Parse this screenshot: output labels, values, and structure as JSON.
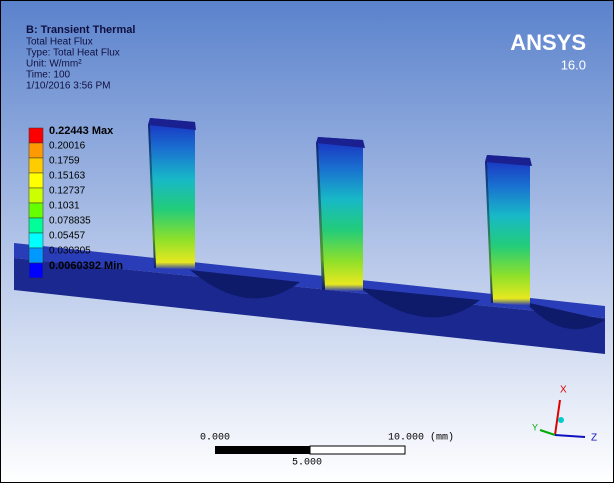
{
  "header": {
    "title": "B: Transient Thermal",
    "lines": [
      "Total Heat Flux",
      "Type: Total Heat Flux",
      "Unit: W/mm²",
      "Time: 100",
      "1/10/2016 3:56 PM"
    ]
  },
  "logo": {
    "name": "ANSYS",
    "version": "16.0"
  },
  "legend": {
    "labels": [
      "0.22443 Max",
      "0.20016",
      "0.1759",
      "0.15163",
      "0.12737",
      "0.1031",
      "0.078835",
      "0.05457",
      "0.030305",
      "0.0060392 Min"
    ],
    "colors": [
      "#ff0000",
      "#ff9900",
      "#ffcc00",
      "#ffff00",
      "#ccff00",
      "#66ff00",
      "#00ff99",
      "#00ffff",
      "#0099ff",
      "#0000ff"
    ]
  },
  "scale_bar": {
    "start": "0.000",
    "end": "10.000 (mm)",
    "mid": "5.000"
  },
  "triad": {
    "x": "X",
    "y": "Y",
    "z": "Z"
  }
}
